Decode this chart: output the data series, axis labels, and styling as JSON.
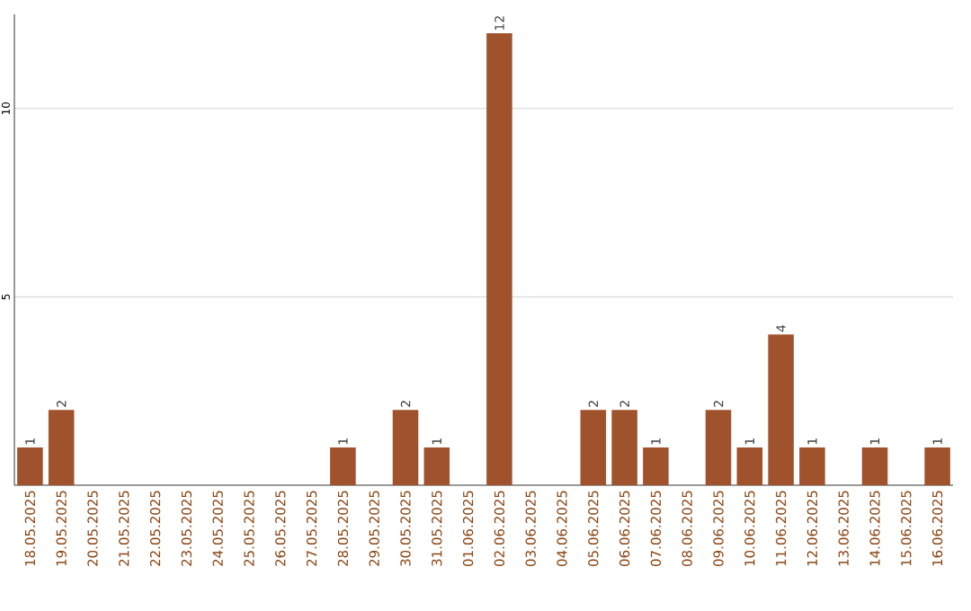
{
  "chart_data": {
    "type": "bar",
    "categories": [
      "18.05.2025",
      "19.05.2025",
      "20.05.2025",
      "21.05.2025",
      "22.05.2025",
      "23.05.2025",
      "24.05.2025",
      "25.05.2025",
      "26.05.2025",
      "27.05.2025",
      "28.05.2025",
      "29.05.2025",
      "30.05.2025",
      "31.05.2025",
      "01.06.2025",
      "02.06.2025",
      "03.06.2025",
      "04.06.2025",
      "05.06.2025",
      "06.06.2025",
      "07.06.2025",
      "08.06.2025",
      "09.06.2025",
      "10.06.2025",
      "11.06.2025",
      "12.06.2025",
      "13.06.2025",
      "14.06.2025",
      "15.06.2025",
      "16.06.2025"
    ],
    "values": [
      1,
      2,
      0,
      0,
      0,
      0,
      0,
      0,
      0,
      0,
      1,
      0,
      2,
      1,
      0,
      12,
      0,
      0,
      2,
      2,
      1,
      0,
      2,
      1,
      4,
      1,
      0,
      1,
      0,
      1
    ],
    "value_labels": [
      "1",
      "2",
      null,
      null,
      null,
      null,
      null,
      null,
      null,
      null,
      "1",
      null,
      "2",
      "1",
      null,
      "12",
      null,
      null,
      "2",
      "2",
      "1",
      null,
      "2",
      "1",
      "4",
      "1",
      null,
      "1",
      null,
      "1"
    ],
    "color": "#a0522d",
    "ylim": [
      0,
      12.5
    ],
    "yticks": [
      5,
      10
    ],
    "grid": "y"
  }
}
